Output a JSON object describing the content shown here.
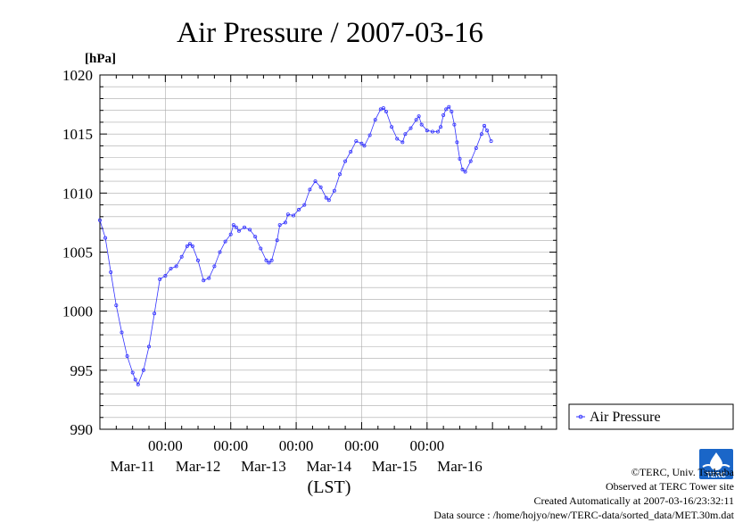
{
  "chart_data": {
    "type": "line",
    "title": "Air Pressure / 2007-03-16",
    "ylabel": "[hPa]",
    "xlabel": "(LST)",
    "ylim": [
      990,
      1020
    ],
    "yticks": [
      990,
      995,
      1000,
      1005,
      1010,
      1015,
      1020
    ],
    "xlim": [
      "2007-03-10T00:00",
      "2007-03-16T23:30"
    ],
    "grid": true,
    "legend": "right",
    "series_color": "#3333ff",
    "xticks": [
      {
        "time": "2007-03-11T00:00",
        "label": "00:00"
      },
      {
        "time": "2007-03-12T00:00",
        "label": "00:00"
      },
      {
        "time": "2007-03-13T00:00",
        "label": "00:00"
      },
      {
        "time": "2007-03-14T00:00",
        "label": "00:00"
      },
      {
        "time": "2007-03-15T00:00",
        "label": "00:00"
      }
    ],
    "date_labels": [
      {
        "time": "2007-03-10T12:00",
        "label": "Mar-11"
      },
      {
        "time": "2007-03-11T12:00",
        "label": "Mar-12"
      },
      {
        "time": "2007-03-12T12:00",
        "label": "Mar-13"
      },
      {
        "time": "2007-03-13T12:00",
        "label": "Mar-14"
      },
      {
        "time": "2007-03-14T12:00",
        "label": "Mar-15"
      },
      {
        "time": "2007-03-15T12:00",
        "label": "Mar-16"
      }
    ],
    "series": [
      {
        "name": "Air Pressure",
        "points": [
          [
            "2007-03-10T00:00",
            1007.7
          ],
          [
            "2007-03-10T02:00",
            1006.2
          ],
          [
            "2007-03-10T04:00",
            1003.3
          ],
          [
            "2007-03-10T06:00",
            1000.5
          ],
          [
            "2007-03-10T08:00",
            998.2
          ],
          [
            "2007-03-10T10:00",
            996.2
          ],
          [
            "2007-03-10T12:00",
            994.8
          ],
          [
            "2007-03-10T13:00",
            994.2
          ],
          [
            "2007-03-10T14:00",
            993.8
          ],
          [
            "2007-03-10T16:00",
            995.0
          ],
          [
            "2007-03-10T18:00",
            997.0
          ],
          [
            "2007-03-10T20:00",
            999.8
          ],
          [
            "2007-03-10T22:00",
            1002.7
          ],
          [
            "2007-03-11T00:00",
            1003.0
          ],
          [
            "2007-03-11T02:00",
            1003.6
          ],
          [
            "2007-03-11T04:00",
            1003.8
          ],
          [
            "2007-03-11T06:00",
            1004.6
          ],
          [
            "2007-03-11T08:00",
            1005.5
          ],
          [
            "2007-03-11T09:00",
            1005.7
          ],
          [
            "2007-03-11T10:00",
            1005.5
          ],
          [
            "2007-03-11T12:00",
            1004.3
          ],
          [
            "2007-03-11T14:00",
            1002.6
          ],
          [
            "2007-03-11T16:00",
            1002.8
          ],
          [
            "2007-03-11T18:00",
            1003.8
          ],
          [
            "2007-03-11T20:00",
            1005.0
          ],
          [
            "2007-03-11T22:00",
            1005.9
          ],
          [
            "2007-03-12T00:00",
            1006.5
          ],
          [
            "2007-03-12T01:00",
            1007.3
          ],
          [
            "2007-03-12T02:00",
            1007.1
          ],
          [
            "2007-03-12T03:00",
            1006.8
          ],
          [
            "2007-03-12T05:00",
            1007.1
          ],
          [
            "2007-03-12T07:00",
            1006.9
          ],
          [
            "2007-03-12T09:00",
            1006.3
          ],
          [
            "2007-03-12T11:00",
            1005.3
          ],
          [
            "2007-03-12T13:00",
            1004.3
          ],
          [
            "2007-03-12T14:00",
            1004.1
          ],
          [
            "2007-03-12T15:00",
            1004.3
          ],
          [
            "2007-03-12T17:00",
            1006.0
          ],
          [
            "2007-03-12T18:00",
            1007.3
          ],
          [
            "2007-03-12T20:00",
            1007.5
          ],
          [
            "2007-03-12T21:00",
            1008.2
          ],
          [
            "2007-03-12T23:00",
            1008.1
          ],
          [
            "2007-03-13T01:00",
            1008.6
          ],
          [
            "2007-03-13T03:00",
            1009.0
          ],
          [
            "2007-03-13T05:00",
            1010.3
          ],
          [
            "2007-03-13T07:00",
            1011.0
          ],
          [
            "2007-03-13T09:00",
            1010.5
          ],
          [
            "2007-03-13T11:00",
            1009.6
          ],
          [
            "2007-03-13T12:00",
            1009.4
          ],
          [
            "2007-03-13T14:00",
            1010.2
          ],
          [
            "2007-03-13T16:00",
            1011.6
          ],
          [
            "2007-03-13T18:00",
            1012.7
          ],
          [
            "2007-03-13T20:00",
            1013.5
          ],
          [
            "2007-03-13T22:00",
            1014.4
          ],
          [
            "2007-03-14T00:00",
            1014.2
          ],
          [
            "2007-03-14T01:00",
            1014.0
          ],
          [
            "2007-03-14T03:00",
            1014.9
          ],
          [
            "2007-03-14T05:00",
            1016.2
          ],
          [
            "2007-03-14T07:00",
            1017.1
          ],
          [
            "2007-03-14T08:00",
            1017.2
          ],
          [
            "2007-03-14T09:00",
            1016.9
          ],
          [
            "2007-03-14T11:00",
            1015.6
          ],
          [
            "2007-03-14T13:00",
            1014.6
          ],
          [
            "2007-03-14T15:00",
            1014.3
          ],
          [
            "2007-03-14T16:00",
            1015.0
          ],
          [
            "2007-03-14T18:00",
            1015.5
          ],
          [
            "2007-03-14T20:00",
            1016.2
          ],
          [
            "2007-03-14T21:00",
            1016.5
          ],
          [
            "2007-03-14T22:00",
            1015.8
          ],
          [
            "2007-03-15T00:00",
            1015.3
          ],
          [
            "2007-03-15T02:00",
            1015.2
          ],
          [
            "2007-03-15T04:00",
            1015.2
          ],
          [
            "2007-03-15T05:00",
            1015.6
          ],
          [
            "2007-03-15T06:00",
            1016.6
          ],
          [
            "2007-03-15T07:00",
            1017.1
          ],
          [
            "2007-03-15T08:00",
            1017.3
          ],
          [
            "2007-03-15T09:00",
            1016.9
          ],
          [
            "2007-03-15T10:00",
            1015.8
          ],
          [
            "2007-03-15T11:00",
            1014.3
          ],
          [
            "2007-03-15T12:00",
            1012.9
          ],
          [
            "2007-03-15T13:00",
            1012.0
          ],
          [
            "2007-03-15T14:00",
            1011.8
          ],
          [
            "2007-03-15T16:00",
            1012.7
          ],
          [
            "2007-03-15T18:00",
            1013.8
          ],
          [
            "2007-03-15T20:00",
            1015.0
          ],
          [
            "2007-03-15T21:00",
            1015.7
          ],
          [
            "2007-03-15T22:00",
            1015.3
          ],
          [
            "2007-03-15T23:30",
            1014.4
          ]
        ]
      }
    ]
  },
  "credits": {
    "copyright": "©TERC, Univ. Tsukuba",
    "site": "Observed at TERC Tower site",
    "created": "Created Automatically at 2007-03-16/23:32:11",
    "source": "Data source : /home/hojyo/new/TERC-data/sorted_data/MET.30m.dat"
  },
  "logo": {
    "text": "TERC",
    "color": "#1a66c8"
  }
}
